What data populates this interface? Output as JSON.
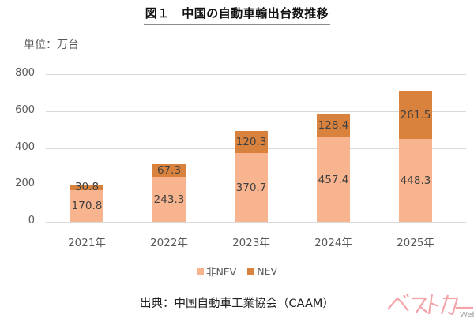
{
  "title": "図１　中国の自動車輸出台数推移",
  "unit_label": "単位：万台",
  "legend": [
    {
      "label": "非NEV",
      "color": "#f8b48e"
    },
    {
      "label": "NEV",
      "color": "#d9823e"
    }
  ],
  "source": "出典：中国自動車工業協会（CAAM）",
  "watermark": {
    "text": "ベストカー",
    "suffix": "Web",
    "color": "#f4a3a8"
  },
  "chart_data": {
    "type": "bar",
    "stacked": true,
    "title": "図１　中国の自動車輸出台数推移",
    "xlabel": "",
    "ylabel": "単位：万台",
    "categories": [
      "2021年",
      "2022年",
      "2023年",
      "2024年",
      "2025年"
    ],
    "series": [
      {
        "name": "非NEV",
        "color": "#f8b48e",
        "values": [
          170.8,
          243.3,
          370.7,
          457.4,
          448.3
        ]
      },
      {
        "name": "NEV",
        "color": "#d9823e",
        "values": [
          30.8,
          67.3,
          120.3,
          128.4,
          261.5
        ]
      }
    ],
    "ylim": [
      0,
      800
    ],
    "yticks": [
      0,
      200,
      400,
      600,
      800
    ],
    "grid": true,
    "legend_position": "bottom",
    "data_labels": true
  }
}
